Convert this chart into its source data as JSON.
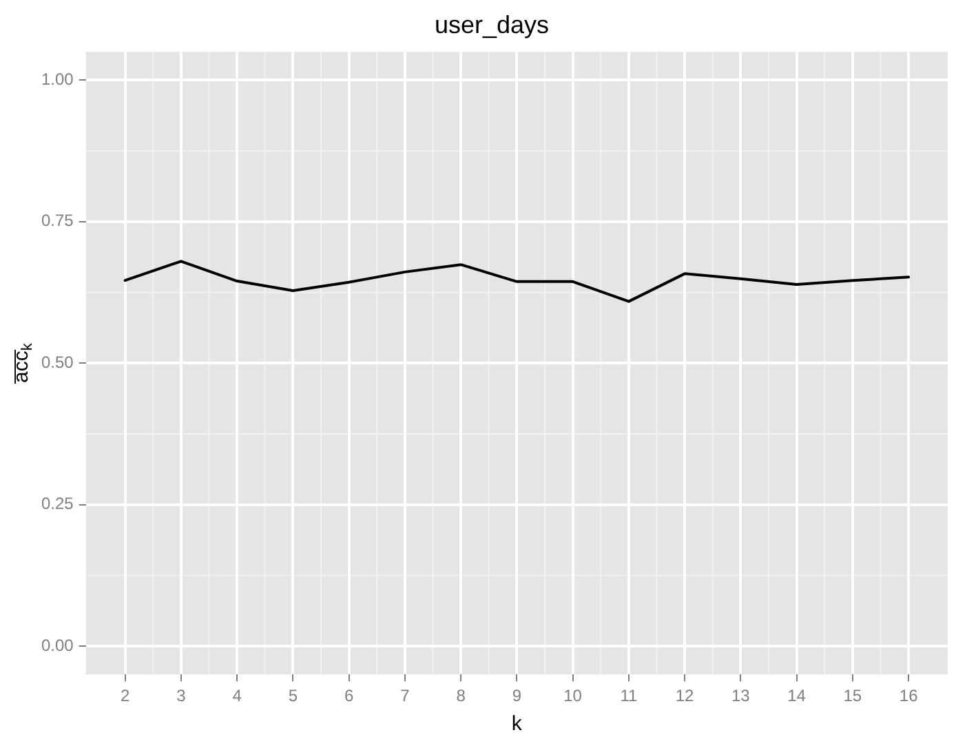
{
  "chart_data": {
    "type": "line",
    "title": "user_days",
    "xlabel": "k",
    "ylabel": "a̅c̅c̅$_{k}$",
    "x": [
      2,
      3,
      4,
      5,
      6,
      7,
      8,
      9,
      10,
      11,
      12,
      13,
      14,
      15,
      16
    ],
    "series": [
      {
        "color": "#000000",
        "values": [
          0.646,
          0.68,
          0.645,
          0.628,
          0.643,
          0.661,
          0.674,
          0.644,
          0.644,
          0.609,
          0.658,
          0.649,
          0.639,
          0.646,
          0.652
        ]
      }
    ],
    "xlim": [
      1.3,
      16.7
    ],
    "xticks": [
      2,
      3,
      4,
      5,
      6,
      7,
      8,
      9,
      10,
      11,
      12,
      13,
      14,
      15,
      16
    ],
    "ylim": [
      -0.05,
      1.05
    ],
    "yticks": [
      {
        "value": 0,
        "label": "0.00"
      },
      {
        "value": 0.25,
        "label": "0.25"
      },
      {
        "value": 0.5,
        "label": "0.50"
      },
      {
        "value": 0.75,
        "label": "0.75"
      },
      {
        "value": 1,
        "label": "1.00"
      }
    ],
    "grid": true,
    "legend": false,
    "marker": "none",
    "line_style": "solid"
  }
}
